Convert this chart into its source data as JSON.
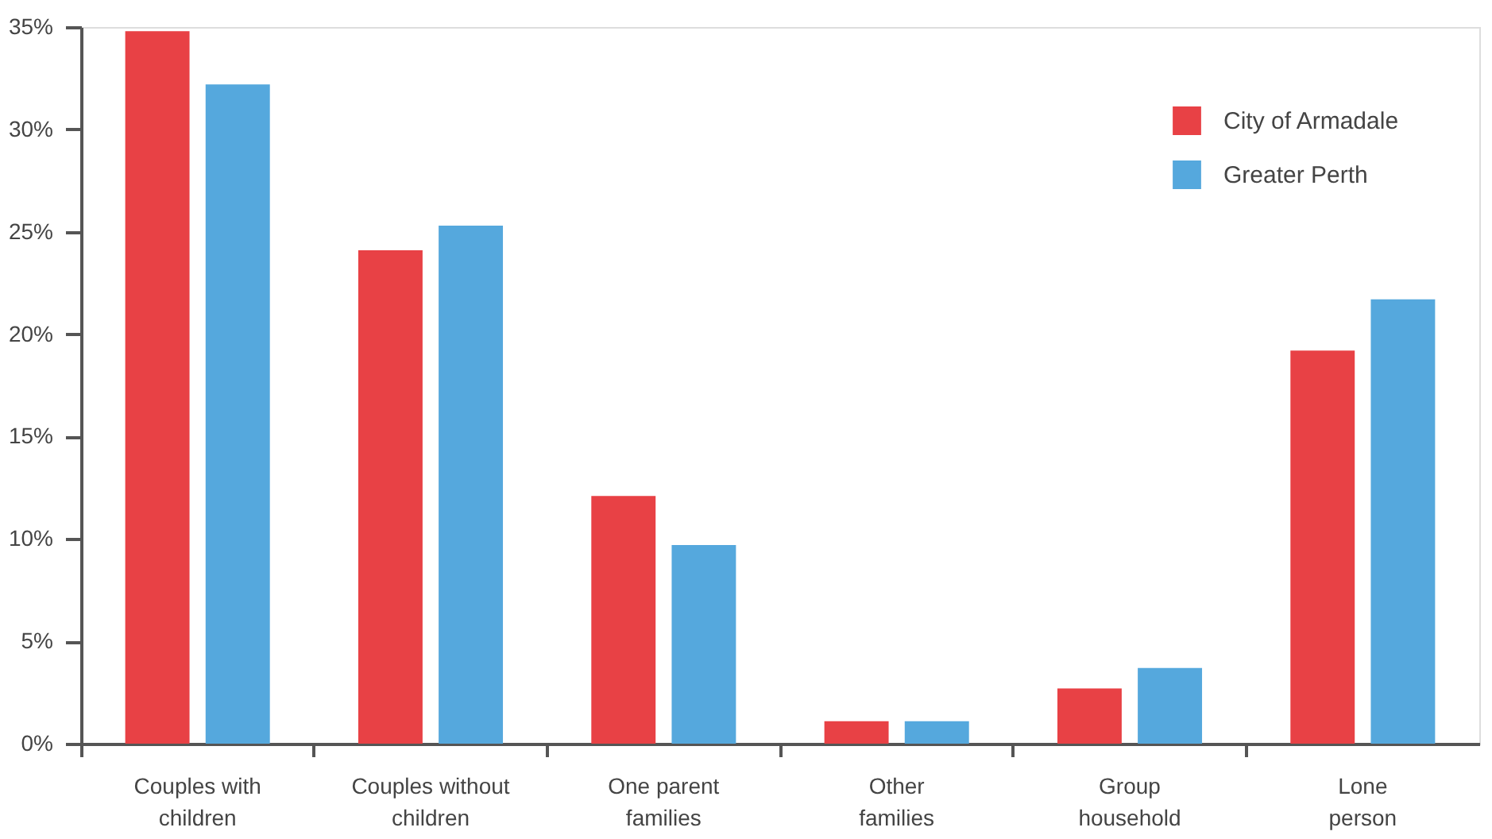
{
  "chart_data": {
    "type": "bar",
    "categories": [
      "Couples with children",
      "Couples without children",
      "One parent families",
      "Other families",
      "Group household",
      "Lone person"
    ],
    "series": [
      {
        "name": "City of Armadale",
        "color": "#e84145",
        "values": [
          34.8,
          24.1,
          12.1,
          1.1,
          2.7,
          19.2
        ]
      },
      {
        "name": "Greater Perth",
        "color": "#55a8dd",
        "values": [
          32.2,
          25.3,
          9.7,
          1.1,
          3.7,
          21.7
        ]
      }
    ],
    "ylim": [
      0,
      35
    ],
    "yticks": [
      {
        "value": 0,
        "label": "0%"
      },
      {
        "value": 5,
        "label": "5%"
      },
      {
        "value": 10,
        "label": "10%"
      },
      {
        "value": 15,
        "label": "15%"
      },
      {
        "value": 20,
        "label": "20%"
      },
      {
        "value": 25,
        "label": "25%"
      },
      {
        "value": 30,
        "label": "30%"
      },
      {
        "value": 35,
        "label": "35%"
      }
    ],
    "grid": false,
    "legend": "top right"
  }
}
